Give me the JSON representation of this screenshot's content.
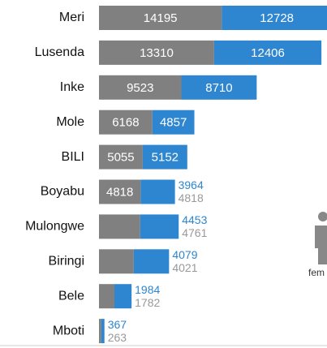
{
  "chart_data": {
    "type": "bar",
    "orientation": "horizontal",
    "stacked": true,
    "categories": [
      "Meri",
      "Lusenda",
      "Inke",
      "Mole",
      "BILI",
      "Boyabu",
      "Mulongwe",
      "Biringi",
      "Bele",
      "Mboti"
    ],
    "series": [
      {
        "color": "#808080",
        "values": [
          14195,
          13310,
          9523,
          6168,
          5055,
          4818,
          4761,
          4021,
          1782,
          263
        ]
      },
      {
        "color": "#2e86d0",
        "values": [
          12728,
          12406,
          8710,
          4857,
          5152,
          3964,
          4453,
          4079,
          1984,
          367
        ]
      }
    ],
    "annotation": "fem"
  }
}
